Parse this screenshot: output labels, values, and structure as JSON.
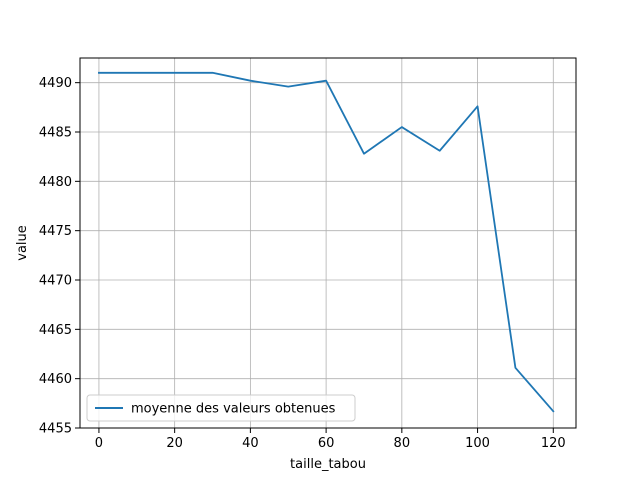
{
  "chart_data": {
    "type": "line",
    "title": "",
    "xlabel": "taille_tabou",
    "ylabel": "value",
    "xlim": [
      -5,
      126
    ],
    "ylim": [
      4455,
      4492.5
    ],
    "xticks": [
      0,
      20,
      40,
      60,
      80,
      100,
      120
    ],
    "yticks": [
      4455,
      4460,
      4465,
      4470,
      4475,
      4480,
      4485,
      4490
    ],
    "grid": true,
    "legend_position": "lower-left",
    "series": [
      {
        "name": "moyenne des valeurs obtenues",
        "color": "#1f77b4",
        "x": [
          0,
          10,
          20,
          30,
          40,
          50,
          60,
          70,
          80,
          90,
          100,
          110,
          120
        ],
        "y": [
          4491.0,
          4491.0,
          4491.0,
          4491.0,
          4490.2,
          4489.6,
          4490.2,
          4482.8,
          4485.5,
          4483.1,
          4487.6,
          4461.1,
          4456.7
        ]
      }
    ]
  }
}
